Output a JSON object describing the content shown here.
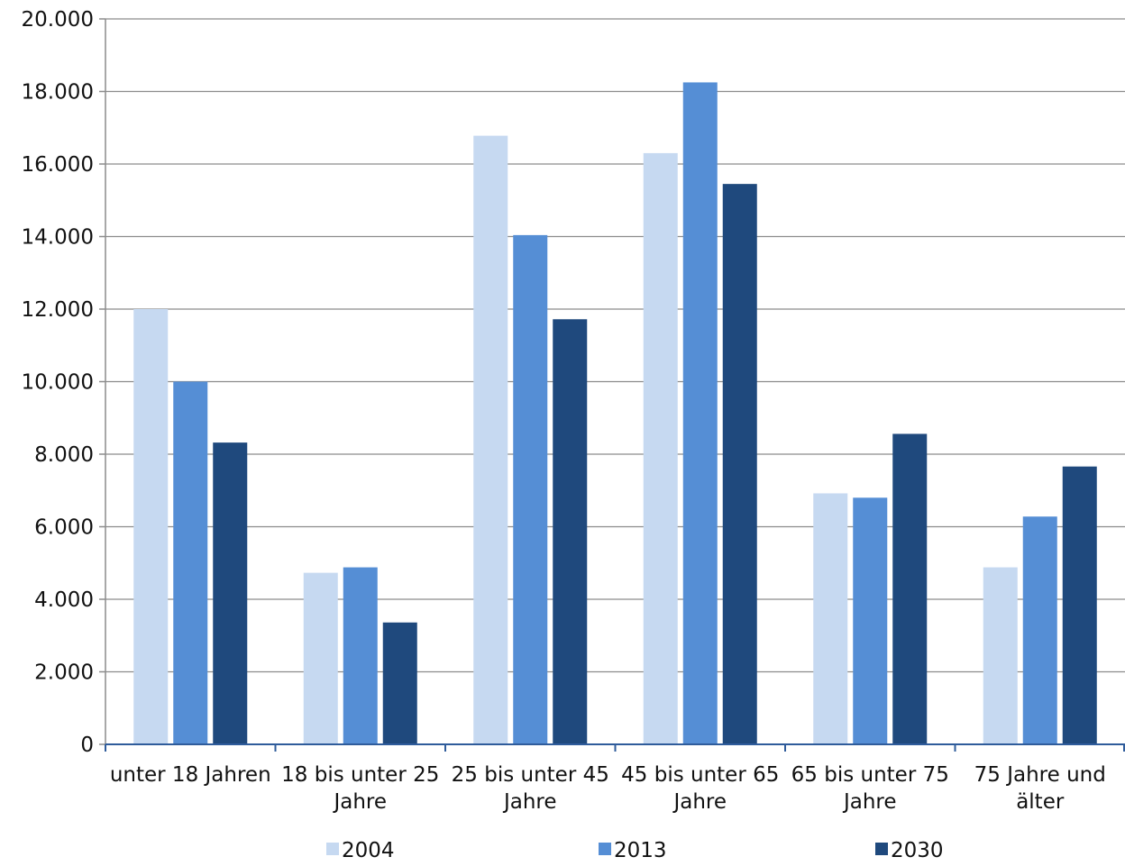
{
  "chart_data": {
    "type": "bar",
    "title": "",
    "xlabel": "",
    "ylabel": "",
    "ylim": [
      0,
      20000
    ],
    "yticks": [
      0,
      2000,
      4000,
      6000,
      8000,
      10000,
      12000,
      14000,
      16000,
      18000,
      20000
    ],
    "ytick_labels": [
      "0",
      "2.000",
      "4.000",
      "6.000",
      "8.000",
      "10.000",
      "12.000",
      "14.000",
      "16.000",
      "18.000",
      "20.000"
    ],
    "grid": true,
    "legend_position": "bottom",
    "categories": [
      [
        "unter 18 Jahren"
      ],
      [
        "18 bis unter 25",
        "Jahre"
      ],
      [
        "25 bis unter 45",
        "Jahre"
      ],
      [
        "45 bis unter 65",
        "Jahre"
      ],
      [
        "65 bis unter 75",
        "Jahre"
      ],
      [
        "75 Jahre und",
        "älter"
      ]
    ],
    "series": [
      {
        "name": "2004",
        "color": "#c6d9f1",
        "values": [
          12000,
          4730,
          16780,
          16300,
          6920,
          4880
        ]
      },
      {
        "name": "2013",
        "color": "#558ed5",
        "values": [
          10000,
          4880,
          14040,
          18250,
          6800,
          6280
        ]
      },
      {
        "name": "2030",
        "color": "#1f497d",
        "values": [
          8320,
          3360,
          11720,
          15450,
          8560,
          7660
        ]
      }
    ]
  }
}
